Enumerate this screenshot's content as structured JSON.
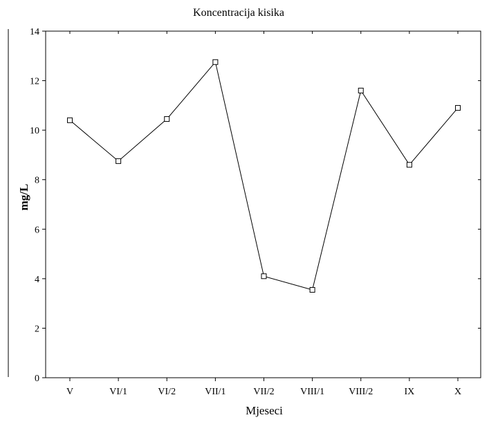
{
  "chart_data": {
    "type": "line",
    "title": "Koncentracija kisika",
    "xlabel": "Mjeseci",
    "ylabel": "mg/L",
    "categories": [
      "V",
      "VI/1",
      "VI/2",
      "VII/1",
      "VII/2",
      "VIII/1",
      "VIII/2",
      "IX",
      "X"
    ],
    "series": [
      {
        "values": [
          10.4,
          8.75,
          10.45,
          12.75,
          4.1,
          3.55,
          11.6,
          8.6,
          10.9
        ]
      }
    ],
    "ylim": [
      0,
      14
    ],
    "yticks": [
      "0",
      "2",
      "4",
      "6",
      "8",
      "10",
      "12",
      "14"
    ],
    "grid": false,
    "marker": "square",
    "line_color": "#000000"
  }
}
